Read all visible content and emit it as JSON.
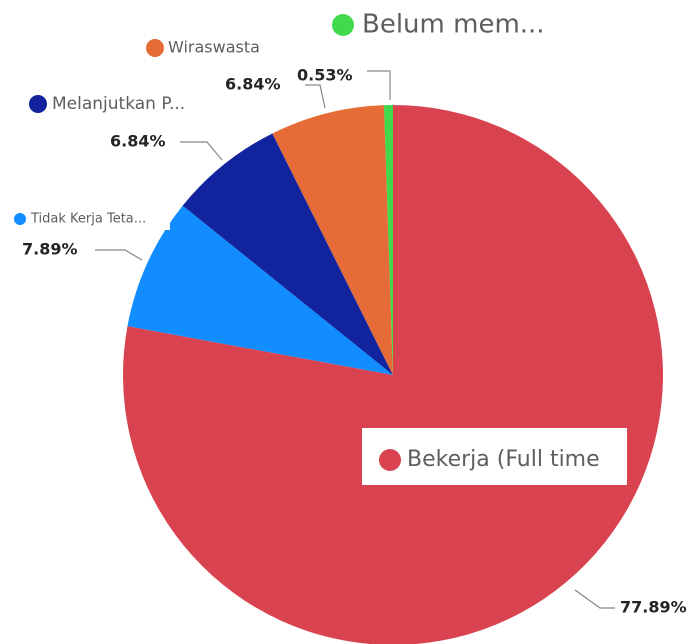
{
  "chart_data": {
    "type": "pie",
    "categories": [
      "Bekerja (Full time",
      "Tidak Kerja Teta...",
      "Melanjutkan P...",
      "Wiraswasta",
      "Belum mem..."
    ],
    "values": [
      77.89,
      7.89,
      6.84,
      6.84,
      0.53
    ],
    "value_labels": [
      "77.89%",
      "7.89%",
      "6.84%",
      "6.84%",
      "0.53%"
    ],
    "colors": [
      "#d9434f",
      "#118dff",
      "#12239e",
      "#e66c37",
      "#41d94b"
    ]
  }
}
